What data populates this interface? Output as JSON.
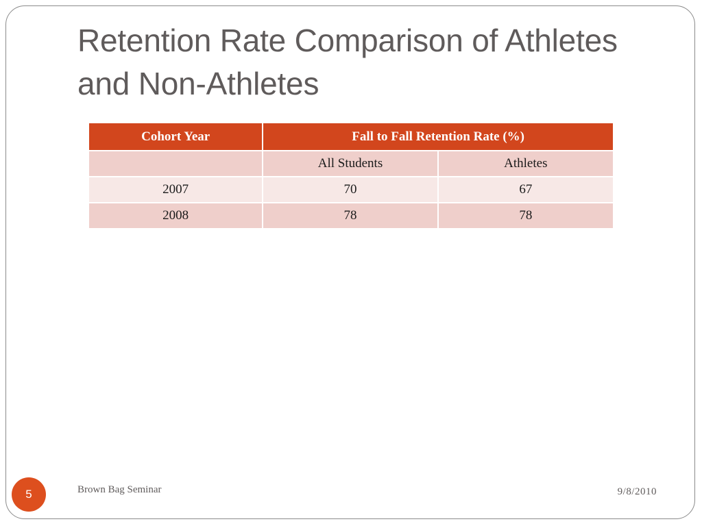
{
  "slide": {
    "title": "Retention Rate Comparison of Athletes and Non-Athletes",
    "number": "5",
    "footer_left": "Brown Bag Seminar",
    "footer_date": "9/8/2010"
  },
  "table": {
    "header_col1": "Cohort Year",
    "header_group": "Fall to Fall Retention Rate (%)",
    "sub_col1": "",
    "sub_col2": "All Students",
    "sub_col3": "Athletes",
    "rows": [
      {
        "year": "2007",
        "all_students": "70",
        "athletes": "67"
      },
      {
        "year": "2008",
        "all_students": "78",
        "athletes": "78"
      }
    ]
  },
  "colors": {
    "header_bg": "#d2461d",
    "row_dark": "#efcfcb",
    "row_light": "#f7e8e6",
    "slide_number_bg": "#dd4f1e",
    "title_text": "#5f5b5b"
  }
}
